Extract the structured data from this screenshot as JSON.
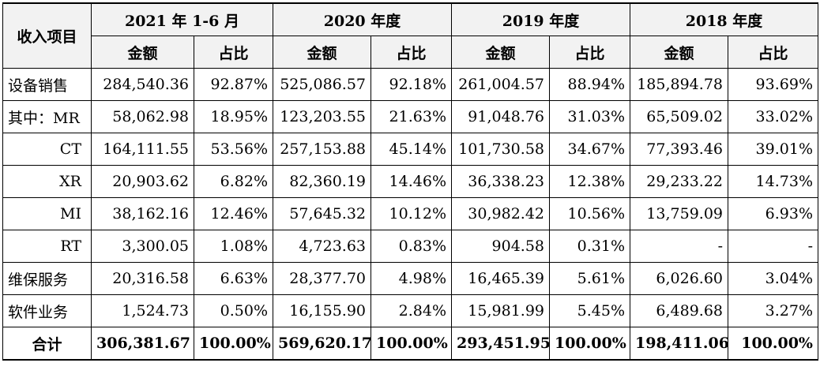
{
  "header": {
    "item_label": "收入项目",
    "periods": [
      "2021 年 1-6 月",
      "2020 年度",
      "2019 年度",
      "2018 年度"
    ],
    "amount_label": "金额",
    "ratio_label": "占比"
  },
  "rows": [
    {
      "label": "设备销售",
      "cells": [
        "284,540.36",
        "92.87%",
        "525,086.57",
        "92.18%",
        "261,004.57",
        "88.94%",
        "185,894.78",
        "93.69%"
      ]
    },
    {
      "label": "其中：MR",
      "cells": [
        "58,062.98",
        "18.95%",
        "123,203.55",
        "21.63%",
        "91,048.76",
        "31.03%",
        "65,509.02",
        "33.02%"
      ]
    },
    {
      "label": "CT",
      "cells": [
        "164,111.55",
        "53.56%",
        "257,153.88",
        "45.14%",
        "101,730.58",
        "34.67%",
        "77,393.46",
        "39.01%"
      ]
    },
    {
      "label": "XR",
      "cells": [
        "20,903.62",
        "6.82%",
        "82,360.19",
        "14.46%",
        "36,338.23",
        "12.38%",
        "29,233.22",
        "14.73%"
      ]
    },
    {
      "label": "MI",
      "cells": [
        "38,162.16",
        "12.46%",
        "57,645.32",
        "10.12%",
        "30,982.42",
        "10.56%",
        "13,759.09",
        "6.93%"
      ]
    },
    {
      "label": "RT",
      "cells": [
        "3,300.05",
        "1.08%",
        "4,723.63",
        "0.83%",
        "904.58",
        "0.31%",
        "-",
        "-"
      ]
    },
    {
      "label": "维保服务",
      "cells": [
        "20,316.58",
        "6.63%",
        "28,377.70",
        "4.98%",
        "16,465.39",
        "5.61%",
        "6,026.60",
        "3.04%"
      ]
    },
    {
      "label": "软件业务",
      "cells": [
        "1,524.73",
        "0.50%",
        "16,155.90",
        "2.84%",
        "15,981.99",
        "5.45%",
        "6,489.68",
        "3.27%"
      ]
    },
    {
      "label": "合计",
      "cells": [
        "306,381.67",
        "100.00%",
        "569,620.17",
        "100.00%",
        "293,451.95",
        "100.00%",
        "198,411.06",
        "100.00%"
      ]
    }
  ]
}
